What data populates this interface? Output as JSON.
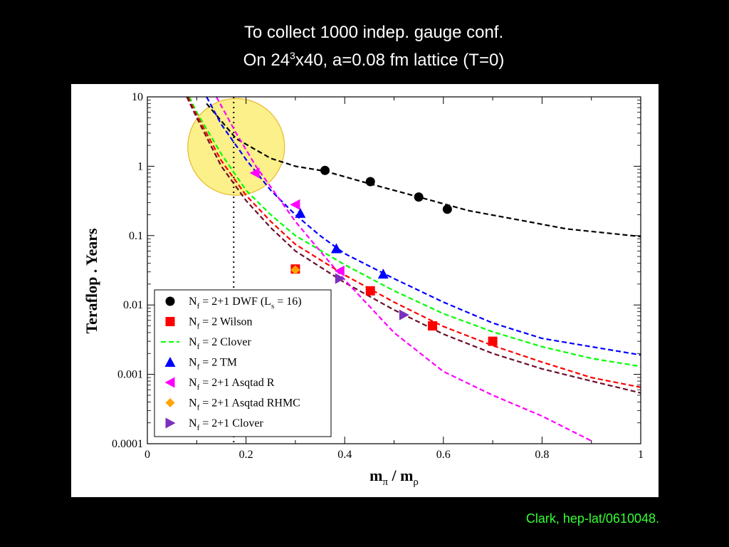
{
  "slide": {
    "title_line1": "To collect 1000 indep. gauge conf.",
    "title_line2_pre": "On 24",
    "title_line2_sup": "3",
    "title_line2_post": "x40, a=0.08 fm lattice (T=0)",
    "credit": "Clark, hep-lat/0610048."
  },
  "colors": {
    "dwf": "#000000",
    "wilson": "#ff0000",
    "clover2": "#00ff00",
    "tm": "#0000ff",
    "asqtad_r": "#ff00ff",
    "rhmc": "#ffa500",
    "clover21": "#7b2fbe",
    "clover21_line": "#6b0f2a",
    "highlight_fill": "#fbf08a",
    "highlight_stroke": "#e8b830"
  },
  "chart_data": {
    "type": "scatter",
    "xlabel": "m",
    "xlabel_sub1": "π",
    "xlabel_mid": " / m",
    "xlabel_sub2": "ρ",
    "ylabel": "Teraflop . Years",
    "xlim": [
      0,
      1
    ],
    "ylim": [
      0.0001,
      10
    ],
    "yscale": "log",
    "x_ticks": [
      "0",
      "0.2",
      "0.4",
      "0.6",
      "0.8",
      "1"
    ],
    "y_ticks": [
      "0.0001",
      "0.001",
      "0.01",
      "0.1",
      "1",
      "10"
    ],
    "vertical_marker_x": 0.175,
    "highlight_circle": {
      "x": 0.18,
      "y": 1.9
    },
    "legend_position": "lower-left",
    "series": [
      {
        "name": "N",
        "sub": "f",
        "rest": " = 2+1 DWF (L",
        "sub2": "s",
        "rest2": " = 16)",
        "marker": "circle",
        "color": "#000000",
        "points": [
          [
            0.36,
            0.87
          ],
          [
            0.452,
            0.6
          ],
          [
            0.55,
            0.36
          ],
          [
            0.608,
            0.24
          ]
        ]
      },
      {
        "name": "N",
        "sub": "f",
        "rest": " = 2 Wilson",
        "sub2": "",
        "rest2": "",
        "marker": "square",
        "color": "#ff0000",
        "points": [
          [
            0.3,
            0.033
          ],
          [
            0.452,
            0.016
          ],
          [
            0.578,
            0.005
          ],
          [
            0.7,
            0.003
          ]
        ]
      },
      {
        "name": "N",
        "sub": "f",
        "rest": " = 2 Clover",
        "sub2": "",
        "rest2": "",
        "marker": "dash",
        "color": "#00ff00",
        "points": []
      },
      {
        "name": "N",
        "sub": "f",
        "rest": " = 2 TM",
        "sub2": "",
        "rest2": "",
        "marker": "triangle-up",
        "color": "#0000ff",
        "points": [
          [
            0.31,
            0.21
          ],
          [
            0.383,
            0.065
          ],
          [
            0.478,
            0.028
          ]
        ]
      },
      {
        "name": "N",
        "sub": "f",
        "rest": " = 2+1 Asqtad R",
        "sub2": "",
        "rest2": "",
        "marker": "triangle-left",
        "color": "#ff00ff",
        "points": [
          [
            0.218,
            0.8
          ],
          [
            0.3,
            0.28
          ],
          [
            0.39,
            0.031
          ]
        ]
      },
      {
        "name": "N",
        "sub": "f",
        "rest": " = 2+1 Asqtad RHMC",
        "sub2": "",
        "rest2": "",
        "marker": "diamond",
        "color": "#ffa500",
        "points": [
          [
            0.3,
            0.032
          ]
        ]
      },
      {
        "name": "N",
        "sub": "f",
        "rest": " = 2+1 Clover",
        "sub2": "",
        "rest2": "",
        "marker": "triangle-right",
        "color": "#7b2fbe",
        "points": [
          [
            0.39,
            0.024
          ],
          [
            0.52,
            0.0072
          ]
        ]
      }
    ],
    "fit_curves": [
      {
        "color": "#000000",
        "points": [
          [
            0.12,
            8.0
          ],
          [
            0.18,
            2.5
          ],
          [
            0.25,
            1.3
          ],
          [
            0.3,
            1.0
          ],
          [
            0.36,
            0.85
          ],
          [
            0.45,
            0.56
          ],
          [
            0.55,
            0.36
          ],
          [
            0.65,
            0.23
          ],
          [
            0.75,
            0.17
          ],
          [
            0.85,
            0.125
          ],
          [
            1.0,
            0.097
          ]
        ]
      },
      {
        "color": "#0000ff",
        "points": [
          [
            0.12,
            10.0
          ],
          [
            0.15,
            4.0
          ],
          [
            0.2,
            1.25
          ],
          [
            0.25,
            0.45
          ],
          [
            0.3,
            0.2
          ],
          [
            0.35,
            0.1
          ],
          [
            0.4,
            0.055
          ],
          [
            0.5,
            0.024
          ],
          [
            0.6,
            0.011
          ],
          [
            0.7,
            0.0055
          ],
          [
            0.8,
            0.0033
          ],
          [
            0.9,
            0.0025
          ],
          [
            1.0,
            0.0019
          ]
        ]
      },
      {
        "color": "#00ff00",
        "points": [
          [
            0.085,
            10.0
          ],
          [
            0.1,
            6.0
          ],
          [
            0.15,
            1.5
          ],
          [
            0.2,
            0.45
          ],
          [
            0.25,
            0.2
          ],
          [
            0.3,
            0.1
          ],
          [
            0.4,
            0.038
          ],
          [
            0.5,
            0.016
          ],
          [
            0.6,
            0.0075
          ],
          [
            0.7,
            0.0041
          ],
          [
            0.8,
            0.0025
          ],
          [
            0.9,
            0.0017
          ],
          [
            1.0,
            0.0013
          ]
        ]
      },
      {
        "color": "#ff0000",
        "points": [
          [
            0.082,
            10.0
          ],
          [
            0.1,
            5.5
          ],
          [
            0.15,
            1.2
          ],
          [
            0.2,
            0.38
          ],
          [
            0.25,
            0.16
          ],
          [
            0.3,
            0.075
          ],
          [
            0.4,
            0.027
          ],
          [
            0.5,
            0.011
          ],
          [
            0.6,
            0.0049
          ],
          [
            0.7,
            0.0026
          ],
          [
            0.8,
            0.0015
          ],
          [
            0.9,
            0.0009
          ],
          [
            1.0,
            0.00065
          ]
        ]
      },
      {
        "color": "#6b0f2a",
        "points": [
          [
            0.08,
            10.0
          ],
          [
            0.1,
            5.0
          ],
          [
            0.15,
            1.0
          ],
          [
            0.2,
            0.32
          ],
          [
            0.25,
            0.13
          ],
          [
            0.3,
            0.06
          ],
          [
            0.4,
            0.021
          ],
          [
            0.5,
            0.0085
          ],
          [
            0.6,
            0.0038
          ],
          [
            0.7,
            0.002
          ],
          [
            0.8,
            0.0012
          ],
          [
            0.9,
            0.0008
          ],
          [
            1.0,
            0.00054
          ]
        ]
      },
      {
        "color": "#ff00ff",
        "points": [
          [
            0.14,
            10.0
          ],
          [
            0.18,
            3.0
          ],
          [
            0.22,
            1.0
          ],
          [
            0.26,
            0.4
          ],
          [
            0.3,
            0.16
          ],
          [
            0.35,
            0.06
          ],
          [
            0.4,
            0.023
          ],
          [
            0.5,
            0.004
          ],
          [
            0.6,
            0.0011
          ],
          [
            0.7,
            0.0005
          ],
          [
            0.8,
            0.00025
          ],
          [
            0.9,
            0.00011
          ]
        ]
      }
    ]
  }
}
